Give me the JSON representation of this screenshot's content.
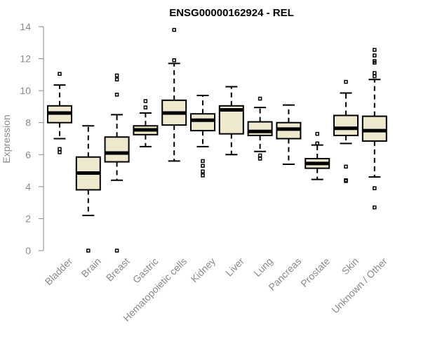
{
  "chart_data": {
    "type": "boxplot",
    "title": "ENSG00000162924 - REL",
    "xlabel": "",
    "ylabel": "Expression",
    "ylim": [
      0,
      14
    ],
    "yticks": [
      0,
      2,
      4,
      6,
      8,
      10,
      12,
      14
    ],
    "box_fill": "#eee8cf",
    "categories": [
      "Bladder",
      "Brain",
      "Breast",
      "Gastric",
      "Hematopoietic cells",
      "Kidney",
      "Liver",
      "Lung",
      "Pancreas",
      "Prostate",
      "Skin",
      "Unknown / Other"
    ],
    "boxes": [
      {
        "category": "Bladder",
        "whisker_low": 7.0,
        "q1": 8.0,
        "median": 8.6,
        "q3": 9.05,
        "whisker_high": 10.35,
        "outliers": [
          11.05,
          6.35,
          6.15
        ]
      },
      {
        "category": "Brain",
        "whisker_low": 2.2,
        "q1": 3.8,
        "median": 4.85,
        "q3": 5.85,
        "whisker_high": 7.8,
        "outliers": [
          0.0
        ]
      },
      {
        "category": "Breast",
        "whisker_low": 4.4,
        "q1": 5.55,
        "median": 6.1,
        "q3": 7.1,
        "whisker_high": 8.5,
        "outliers": [
          10.95,
          10.7,
          9.75,
          0.0
        ]
      },
      {
        "category": "Gastric",
        "whisker_low": 6.5,
        "q1": 7.25,
        "median": 7.55,
        "q3": 7.8,
        "whisker_high": 8.6,
        "outliers": [
          9.35,
          8.95
        ]
      },
      {
        "category": "Hematopoietic cells",
        "whisker_low": 5.6,
        "q1": 7.85,
        "median": 8.6,
        "q3": 9.4,
        "whisker_high": 11.7,
        "outliers": [
          13.8,
          11.9
        ]
      },
      {
        "category": "Kidney",
        "whisker_low": 6.5,
        "q1": 7.5,
        "median": 8.15,
        "q3": 8.55,
        "whisker_high": 9.7,
        "outliers": [
          5.6,
          5.3,
          4.95,
          4.7
        ]
      },
      {
        "category": "Liver",
        "whisker_low": 6.0,
        "q1": 7.3,
        "median": 8.8,
        "q3": 9.05,
        "whisker_high": 10.25,
        "outliers": []
      },
      {
        "category": "Lung",
        "whisker_low": 6.2,
        "q1": 7.2,
        "median": 7.45,
        "q3": 8.05,
        "whisker_high": 8.95,
        "outliers": [
          9.5,
          5.95,
          5.75
        ]
      },
      {
        "category": "Pancreas",
        "whisker_low": 5.4,
        "q1": 7.0,
        "median": 7.6,
        "q3": 8.0,
        "whisker_high": 9.1,
        "outliers": []
      },
      {
        "category": "Prostate",
        "whisker_low": 4.45,
        "q1": 5.15,
        "median": 5.45,
        "q3": 5.75,
        "whisker_high": 6.6,
        "outliers": [
          7.3,
          6.7
        ]
      },
      {
        "category": "Skin",
        "whisker_low": 6.7,
        "q1": 7.2,
        "median": 7.65,
        "q3": 8.45,
        "whisker_high": 9.85,
        "outliers": [
          10.55,
          5.25,
          4.4,
          4.35
        ]
      },
      {
        "category": "Unknown / Other",
        "whisker_low": 4.6,
        "q1": 6.85,
        "median": 7.5,
        "q3": 8.4,
        "whisker_high": 10.7,
        "outliers": [
          12.55,
          12.2,
          11.85,
          11.75,
          11.1,
          10.9,
          3.9,
          2.7
        ]
      }
    ]
  }
}
